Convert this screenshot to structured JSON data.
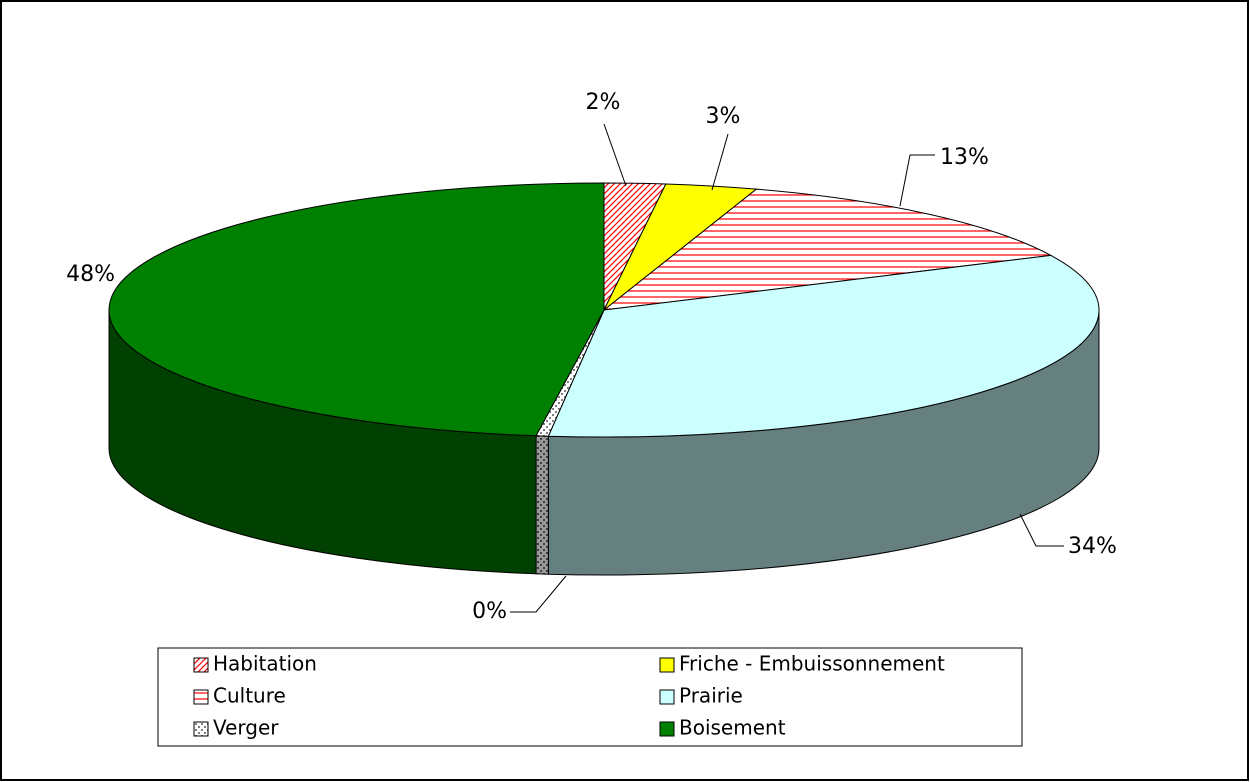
{
  "chart_data": {
    "type": "pie3d",
    "categories": [
      "Habitation",
      "Friche - Embuissonnement",
      "Culture",
      "Prairie",
      "Verger",
      "Boisement"
    ],
    "values": [
      2,
      3,
      13,
      34,
      0.4,
      48
    ],
    "value_labels": [
      "2%",
      "3%",
      "13%",
      "34%",
      "0%",
      "48%"
    ],
    "colors": [
      "#ff0000",
      "#ffff00",
      "#ff0000",
      "#ccffff",
      "#808080",
      "#008000"
    ],
    "patterns": [
      "diagonal",
      null,
      "horizontal",
      null,
      "dots",
      null
    ],
    "legend": "bottom"
  }
}
